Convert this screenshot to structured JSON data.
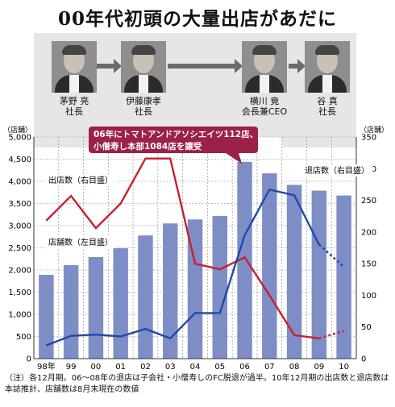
{
  "title": "00年代初頭の大量出店があだに",
  "executives": [
    {
      "name": "茅野 亮",
      "role": "社長"
    },
    {
      "name": "伊藤康孝",
      "role": "社長"
    },
    {
      "name": "横川 竟",
      "role": "会長兼CEO"
    },
    {
      "name": "谷 真",
      "role": "社長"
    }
  ],
  "annotation": {
    "line1": "06年にトマトアンドアソシエイツ112店、",
    "line2": "小僧寿し本部1084店を譲受",
    "color": "#9b2147"
  },
  "series_labels": {
    "openings": "出店数（右目盛）",
    "stores": "店舗数（左目盛）",
    "closures": "退店数（右目盛）"
  },
  "note": "（注）各12月期。06～08年の退店は子会社・小僧寿しのFC脱退が過半。10年12月期の出店数と退店数は本誌推計、店舗数は8月末現在の数値",
  "colors": {
    "bar": "#7f8dc7",
    "openings": "#c4232d",
    "closures": "#1f4aa8",
    "grid": "#888888"
  },
  "chart_data": {
    "type": "bar",
    "categories": [
      "98年",
      "99",
      "00",
      "01",
      "02",
      "03",
      "04",
      "05",
      "06",
      "07",
      "08",
      "09",
      "10"
    ],
    "left_axis": {
      "unit": "（店舗）",
      "range": [
        0,
        5000
      ],
      "ticks": [
        "0",
        "500",
        "1,000",
        "1,500",
        "2,000",
        "2,500",
        "3,000",
        "3,500",
        "4,000",
        "4,500",
        "5,000"
      ]
    },
    "right_axis": {
      "unit": "（店舗）",
      "range": [
        0,
        350
      ],
      "ticks": [
        "0",
        "50",
        "100",
        "150",
        "200",
        "250",
        "300",
        "350"
      ]
    },
    "series": [
      {
        "name": "店舗数（左目盛）",
        "type": "bar",
        "axis": "left",
        "values": [
          1890,
          2110,
          2290,
          2490,
          2780,
          3050,
          3140,
          3220,
          4440,
          4180,
          3920,
          3790,
          3680
        ]
      },
      {
        "name": "出店数（右目盛）",
        "type": "line",
        "axis": "right",
        "values": [
          218,
          257,
          206,
          245,
          316,
          316,
          150,
          141,
          160,
          100,
          37,
          32,
          44
        ],
        "estimated_from_index": 11
      },
      {
        "name": "退店数（右目盛）",
        "type": "line",
        "axis": "right",
        "values": [
          21,
          36,
          38,
          35,
          47,
          32,
          72,
          72,
          195,
          267,
          258,
          180,
          145
        ],
        "estimated_from_index": 11
      }
    ],
    "grid": true,
    "highlight_region": [
      "06",
      "07"
    ]
  }
}
